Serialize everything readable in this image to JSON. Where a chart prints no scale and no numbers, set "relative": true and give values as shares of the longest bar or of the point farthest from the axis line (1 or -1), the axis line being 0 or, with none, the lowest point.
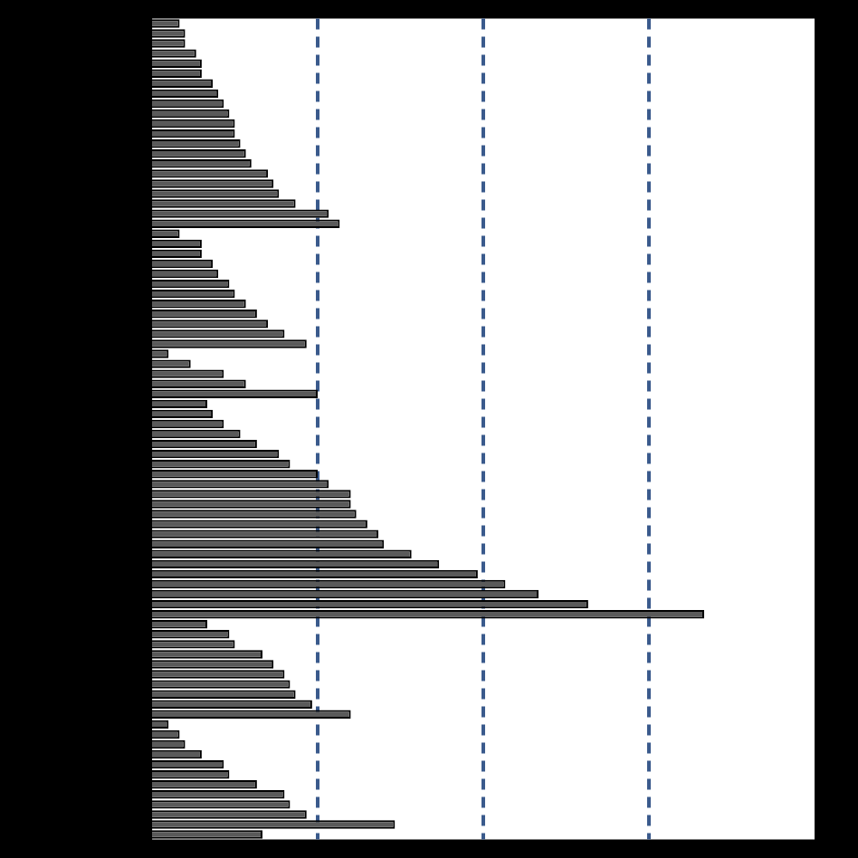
{
  "chart_data": {
    "type": "bar",
    "orientation": "horizontal",
    "relative": true,
    "legend": false,
    "categories": [
      null,
      null,
      null,
      null,
      null,
      null,
      null,
      null,
      null,
      null,
      null,
      null,
      null,
      null,
      null,
      null,
      null,
      null,
      null,
      null,
      null,
      null,
      null,
      null,
      null,
      null,
      null,
      null,
      null,
      null,
      null,
      null,
      null,
      null,
      null,
      null,
      null,
      null,
      null,
      null,
      null,
      null,
      null,
      null,
      null,
      null,
      null,
      null,
      null,
      null,
      null,
      null,
      null,
      null,
      null,
      null,
      null,
      null,
      null,
      null,
      null,
      null,
      null,
      null,
      null,
      null,
      null,
      null,
      null,
      null,
      null,
      null,
      null,
      null,
      null,
      null,
      null,
      null,
      null,
      null,
      null,
      null
    ],
    "values": [
      0.05,
      0.06,
      0.06,
      0.08,
      0.09,
      0.09,
      0.11,
      0.12,
      0.13,
      0.14,
      0.15,
      0.15,
      0.16,
      0.17,
      0.18,
      0.21,
      0.22,
      0.23,
      0.26,
      0.32,
      0.34,
      0.05,
      0.09,
      0.09,
      0.11,
      0.12,
      0.14,
      0.15,
      0.17,
      0.19,
      0.21,
      0.24,
      0.28,
      0.03,
      0.07,
      0.13,
      0.17,
      0.3,
      0.1,
      0.11,
      0.13,
      0.16,
      0.19,
      0.23,
      0.25,
      0.3,
      0.32,
      0.36,
      0.36,
      0.37,
      0.39,
      0.41,
      0.42,
      0.47,
      0.52,
      0.59,
      0.64,
      0.7,
      0.79,
      1,
      0.1,
      0.14,
      0.15,
      0.2,
      0.22,
      0.24,
      0.25,
      0.26,
      0.29,
      0.36,
      0.03,
      0.05,
      0.06,
      0.09,
      0.13,
      0.14,
      0.19,
      0.24,
      0.25,
      0.28,
      0.44,
      0.2
    ],
    "color": "#5a5a5a",
    "ref_lines": [
      {
        "axis": "x",
        "value": 0.3,
        "color": "#3a5a8c",
        "line_style": "dashed"
      },
      {
        "axis": "x",
        "value": 0.6,
        "color": "#3a5a8c",
        "line_style": "dashed"
      },
      {
        "axis": "x",
        "value": 0.9,
        "color": "#3a5a8c",
        "line_style": "dashed"
      }
    ]
  }
}
